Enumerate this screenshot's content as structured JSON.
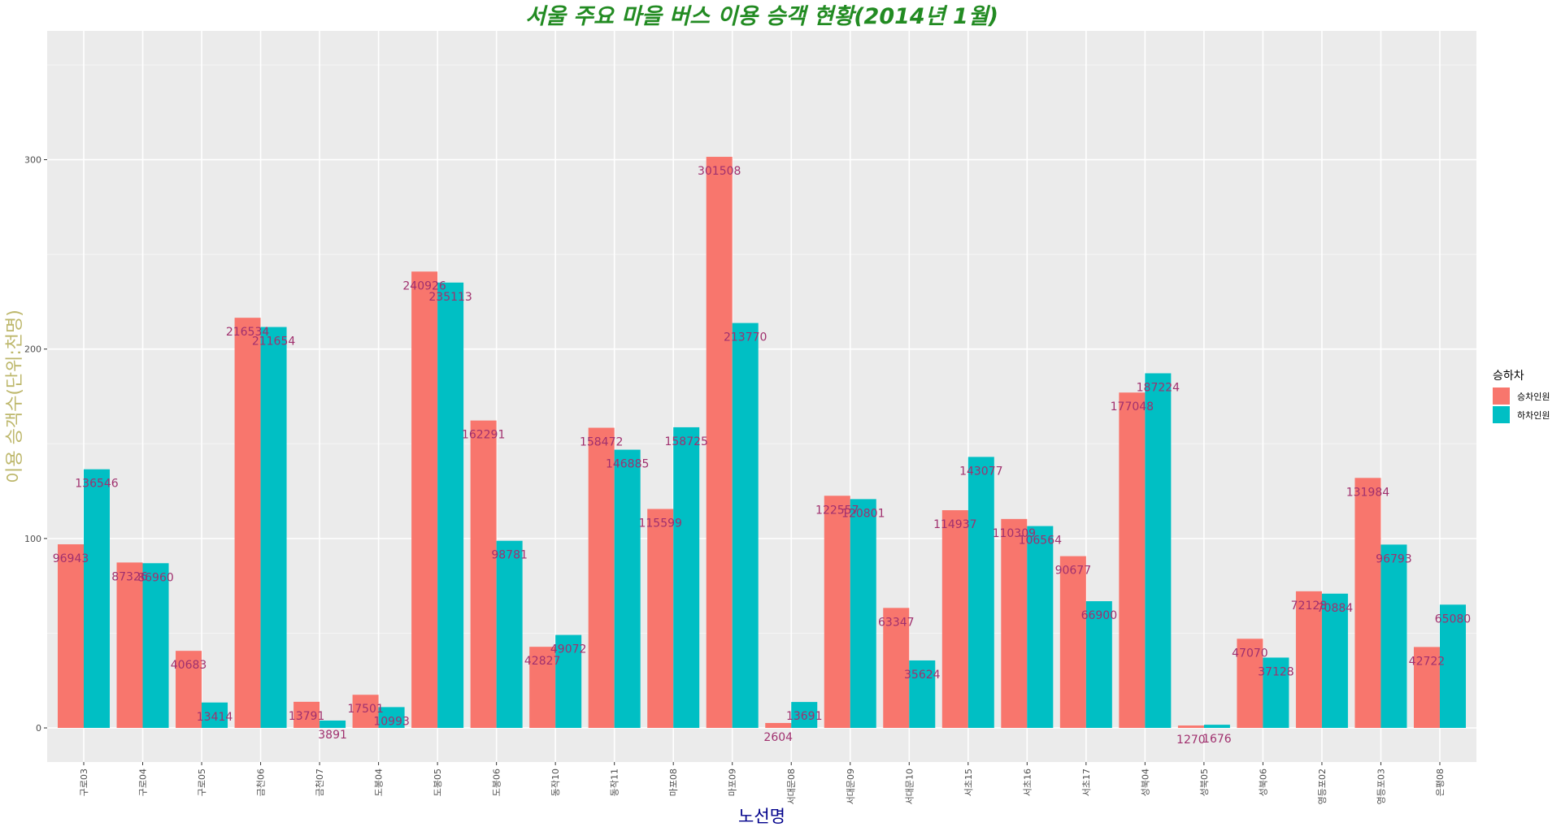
{
  "chart_data": {
    "type": "bar",
    "title": "서울 주요 마을 버스 이용 승객 현황(2014년 1월)",
    "xlabel": "노선명",
    "ylabel": "이용 승객수(단위:천명)",
    "ylim": [
      -18,
      368
    ],
    "yticks": [
      0,
      100,
      200,
      300
    ],
    "grid": true,
    "legend_title": "승하차",
    "legend_position": "right",
    "categories": [
      "구로03",
      "구로04",
      "구로05",
      "금천06",
      "금천07",
      "도봉04",
      "도봉05",
      "도봉06",
      "동작10",
      "동작11",
      "마포08",
      "마포09",
      "서대문08",
      "서대문09",
      "서대문10",
      "서초15",
      "서초16",
      "서초17",
      "성북04",
      "성북05",
      "성북06",
      "영등포02",
      "영등포03",
      "은평08"
    ],
    "series": [
      {
        "name": "승차인원",
        "color": "#F8766D",
        "values": [
          96943,
          87326,
          40683,
          216534,
          13791,
          17501,
          240926,
          162291,
          42827,
          158472,
          115599,
          301508,
          2604,
          122557,
          63347,
          114937,
          110309,
          90677,
          177048,
          1270,
          47070,
          72128,
          131984,
          42722
        ]
      },
      {
        "name": "하차인원",
        "color": "#00BFC4",
        "values": [
          136546,
          86960,
          13414,
          211654,
          3891,
          10993,
          235113,
          98781,
          49072,
          146885,
          158725,
          213770,
          13691,
          120801,
          35624,
          143077,
          106564,
          66900,
          187224,
          1676,
          37128,
          70884,
          96793,
          65080
        ]
      }
    ]
  }
}
